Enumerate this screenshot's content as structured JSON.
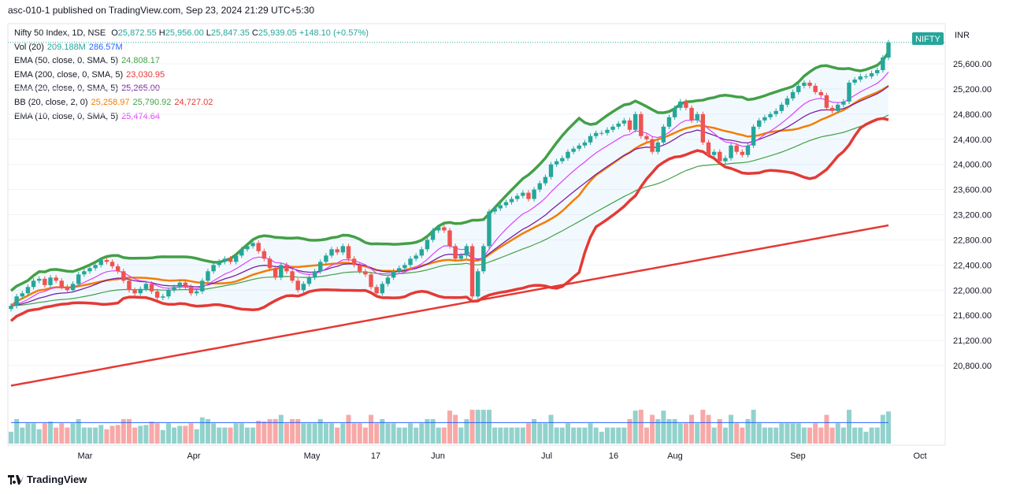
{
  "header": {
    "publish_line": "asc-010-1 published on TradingView.com, Sep 23, 2024 21:29 UTC+5:30"
  },
  "legend": {
    "symbol": "Nifty 50 Index, 1D, NSE",
    "ohlc": {
      "o_label": "O",
      "o": "25,872.55",
      "h_label": "H",
      "h": "25,956.00",
      "l_label": "L",
      "l": "25,847.35",
      "c_label": "C",
      "c": "25,939.05",
      "change": "+148.10 (+0.57%)"
    },
    "rows": [
      {
        "label": "Vol (20)",
        "values": [
          "209.188M",
          "286.57M"
        ],
        "colors": [
          "#26a69a",
          "#2962ff"
        ]
      },
      {
        "label": "EMA (50, close, 0, SMA, 5)",
        "values": [
          "24,808.17"
        ],
        "colors": [
          "#43a047"
        ]
      },
      {
        "label": "EMA (200, close, 0, SMA, 5)",
        "values": [
          "23,030.95"
        ],
        "colors": [
          "#e53935"
        ]
      },
      {
        "label": "EMA (20, close, 0, SMA, 5)",
        "values": [
          "25,265.00"
        ],
        "colors": [
          "#7b1fa2"
        ]
      },
      {
        "label": "BB (20, close, 2, 0)",
        "values": [
          "25,258.97",
          "25,790.92",
          "24,727.02"
        ],
        "colors": [
          "#f57c00",
          "#43a047",
          "#e53935"
        ]
      },
      {
        "label": "EMA (10, close, 0, SMA, 5)",
        "values": [
          "25,474.64"
        ],
        "colors": [
          "#e040fb"
        ]
      }
    ]
  },
  "price_axis": {
    "currency": "INR",
    "ticks": [
      "25,600.00",
      "25,200.00",
      "24,800.00",
      "24,400.00",
      "24,000.00",
      "23,600.00",
      "23,200.00",
      "22,800.00",
      "22,400.00",
      "22,000.00",
      "21,600.00",
      "21,200.00",
      "20,800.00"
    ],
    "symbol_tag": "NIFTY"
  },
  "time_axis": {
    "labels": [
      "Mar",
      "Apr",
      "May",
      "17",
      "Jun",
      "Jul",
      "16",
      "Aug",
      "Sep",
      "Oct"
    ]
  },
  "footer": {
    "brand": "TradingView"
  },
  "colors": {
    "up": "#26a69a",
    "down": "#ef5350",
    "ema10": "#e040fb",
    "ema20": "#7b1fa2",
    "ema50": "#43a047",
    "ema200": "#e53935",
    "bb_mid": "#f57c00",
    "bb_up": "#43a047",
    "bb_low": "#e53935",
    "vol_ma": "#2962ff",
    "tag": "#26a69a"
  },
  "chart_data": {
    "type": "candlestick",
    "y_unit": "index points",
    "ylim": [
      20600,
      25960
    ],
    "closes": [
      21750,
      21900,
      21950,
      22050,
      22150,
      22180,
      22080,
      22200,
      22150,
      22050,
      22000,
      22100,
      22250,
      22300,
      22350,
      22400,
      22480,
      22450,
      22380,
      22300,
      22150,
      22000,
      21950,
      22020,
      22100,
      21980,
      21880,
      21900,
      22000,
      22050,
      22120,
      22050,
      21950,
      21980,
      22150,
      22300,
      22400,
      22450,
      22500,
      22450,
      22550,
      22650,
      22700,
      22750,
      22620,
      22500,
      22350,
      22200,
      22400,
      22300,
      22150,
      22000,
      22100,
      22200,
      22300,
      22450,
      22550,
      22650,
      22600,
      22700,
      22500,
      22400,
      22300,
      22250,
      22050,
      21950,
      22100,
      22200,
      22300,
      22350,
      22400,
      22500,
      22550,
      22650,
      22800,
      22950,
      23000,
      22950,
      22700,
      22500,
      22550,
      22700,
      21900,
      22300,
      22700,
      23250,
      23300,
      23350,
      23400,
      23450,
      23500,
      23550,
      23450,
      23600,
      23700,
      23800,
      24000,
      24050,
      24100,
      24200,
      24250,
      24300,
      24350,
      24450,
      24500,
      24500,
      24550,
      24600,
      24650,
      24700,
      24550,
      24800,
      24450,
      24400,
      24200,
      24350,
      24600,
      24750,
      24900,
      25000,
      24900,
      24700,
      24800,
      24350,
      24150,
      24200,
      24050,
      24100,
      24300,
      24200,
      24150,
      24300,
      24600,
      24700,
      24750,
      24800,
      24850,
      24950,
      25050,
      25150,
      25250,
      25300,
      25250,
      25150,
      25100,
      24900,
      24850,
      24950,
      25000,
      25300,
      25350,
      25400,
      25400,
      25450,
      25500,
      25700,
      25940
    ],
    "bollinger_upper_last": 25790.92,
    "bollinger_mid_last": 25258.97,
    "bollinger_lower_last": 24727.02,
    "ema10_last": 25474.64,
    "ema20_last": 25265.0,
    "ema50_last": 24808.17,
    "ema200_last": 23030.95,
    "volume_last_m": 209.188,
    "volume_ma_last_m": 286.57
  }
}
